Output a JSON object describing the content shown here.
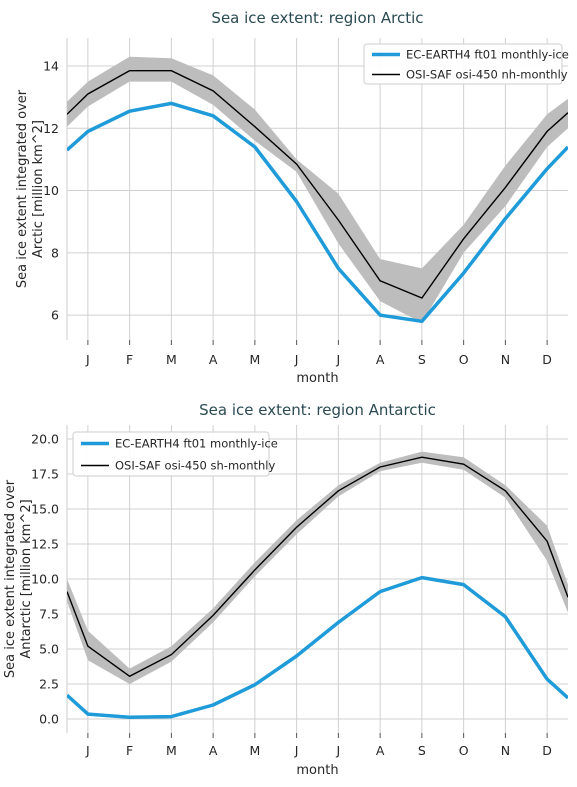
{
  "chart_data": [
    {
      "type": "line",
      "title": "Sea ice extent: region Arctic",
      "xlabel": "month",
      "ylabel_lines": [
        "Sea ice extent integrated over",
        "Arctic [million km^2]"
      ],
      "categories": [
        "J",
        "F",
        "M",
        "A",
        "M",
        "J",
        "J",
        "A",
        "S",
        "O",
        "N",
        "D"
      ],
      "ylim": [
        5.2,
        14.9
      ],
      "yticks": [
        6,
        8,
        10,
        12,
        14
      ],
      "ytick_labels": [
        "6",
        "8",
        "10",
        "12",
        "14"
      ],
      "grid": true,
      "legend_position": "top-right",
      "series": [
        {
          "name": "EC-EARTH4 ft01 monthly-ice",
          "color": "#1f9bd9",
          "values": [
            11.9,
            12.55,
            12.8,
            12.4,
            11.4,
            9.65,
            7.5,
            6.0,
            5.8,
            7.35,
            9.1,
            10.7
          ],
          "edge_left": 11.3,
          "edge_right": 11.4
        },
        {
          "name": "OSI-SAF osi-450 nh-monthly",
          "color": "#000000",
          "values": [
            13.1,
            13.85,
            13.85,
            13.2,
            12.05,
            10.85,
            9.05,
            7.1,
            6.55,
            8.45,
            10.1,
            11.9
          ],
          "band_upper": [
            13.5,
            14.3,
            14.25,
            13.7,
            12.6,
            11.0,
            9.9,
            7.8,
            7.5,
            8.9,
            10.8,
            12.45
          ],
          "band_lower": [
            12.7,
            13.5,
            13.5,
            12.75,
            11.6,
            10.6,
            8.3,
            6.45,
            5.75,
            8.0,
            9.5,
            11.4
          ],
          "edge_left": [
            12.45,
            12.05,
            12.85
          ],
          "edge_right": [
            12.5,
            12.0,
            12.95
          ]
        }
      ]
    },
    {
      "type": "line",
      "title": "Sea ice extent: region Antarctic",
      "xlabel": "month",
      "ylabel_lines": [
        "Sea ice extent integrated over",
        "Antarctic [million km^2]"
      ],
      "categories": [
        "J",
        "F",
        "M",
        "A",
        "M",
        "J",
        "J",
        "A",
        "S",
        "O",
        "N",
        "D"
      ],
      "ylim": [
        -1.0,
        21.0
      ],
      "yticks": [
        0.0,
        2.5,
        5.0,
        7.5,
        10.0,
        12.5,
        15.0,
        17.5,
        20.0
      ],
      "ytick_labels": [
        "0.0",
        "2.5",
        "5.0",
        "7.5",
        "10.0",
        "12.5",
        "15.0",
        "17.5",
        "20.0"
      ],
      "grid": true,
      "legend_position": "top-left",
      "series": [
        {
          "name": "EC-EARTH4 ft01 monthly-ice",
          "color": "#1f9bd9",
          "values": [
            0.35,
            0.12,
            0.17,
            1.0,
            2.45,
            4.5,
            6.9,
            9.1,
            10.1,
            9.6,
            7.3,
            2.85
          ],
          "edge_left": 1.7,
          "edge_right": 1.5
        },
        {
          "name": "OSI-SAF osi-450 sh-monthly",
          "color": "#000000",
          "values": [
            5.2,
            3.05,
            4.6,
            7.4,
            10.65,
            13.7,
            16.3,
            18.0,
            18.7,
            18.2,
            16.3,
            12.7
          ],
          "band_upper": [
            6.3,
            3.6,
            5.2,
            7.9,
            11.2,
            14.2,
            16.7,
            18.3,
            19.1,
            18.7,
            16.7,
            13.8
          ],
          "band_lower": [
            4.2,
            2.5,
            4.1,
            6.9,
            10.2,
            13.2,
            15.9,
            17.7,
            18.3,
            17.8,
            15.8,
            11.3
          ],
          "edge_left": [
            9.1,
            8.4,
            10.0
          ],
          "edge_right": [
            8.7,
            7.6,
            9.6
          ]
        }
      ]
    }
  ]
}
